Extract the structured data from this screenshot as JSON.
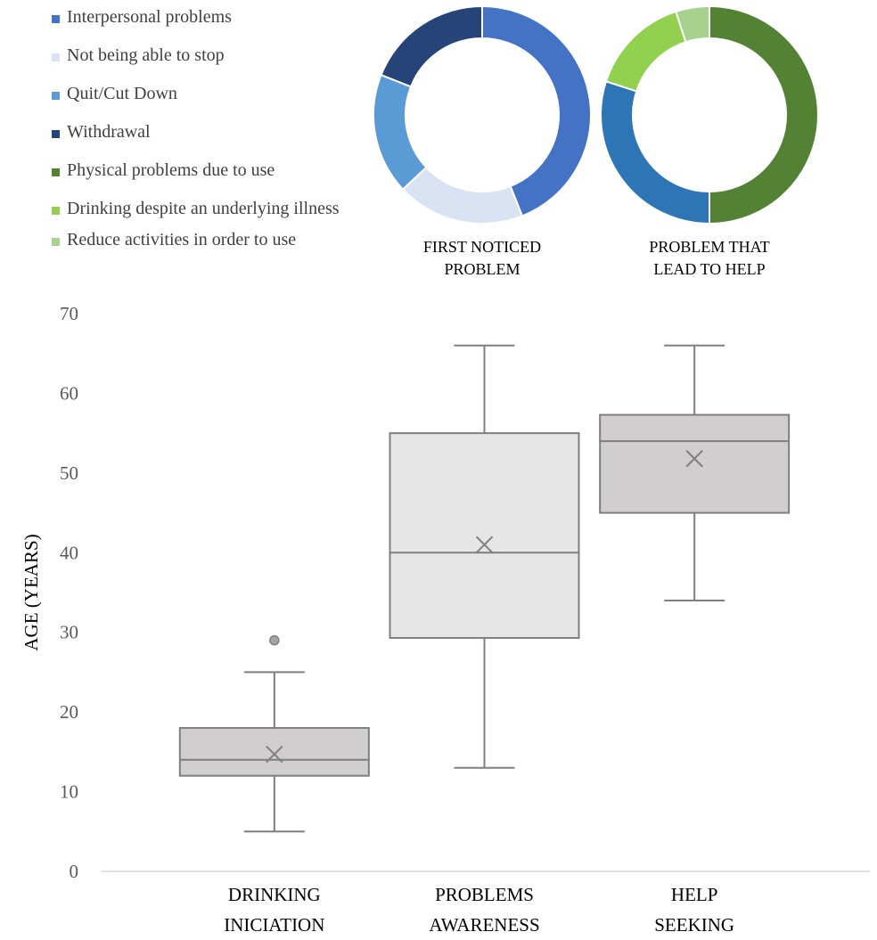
{
  "legend": {
    "items": [
      {
        "label": "Interpersonal problems",
        "color": "#4472C4"
      },
      {
        "label": "Not being able to stop",
        "color": "#DAE3F3"
      },
      {
        "label": "Quit/Cut Down",
        "color": "#5B9BD5"
      },
      {
        "label": "Withdrawal",
        "color": "#264478"
      },
      {
        "label": "Physical problems due to use",
        "color": "#548235"
      },
      {
        "label": "Drinking despite an underlying illness",
        "color": "#92D050"
      },
      {
        "label": "Reduce activities in order to use",
        "color": "#A9D18E"
      }
    ]
  },
  "chart_data": [
    {
      "type": "pie",
      "variant": "donut",
      "title": "FIRST NOTICED PROBLEM",
      "slices": [
        {
          "label": "Interpersonal problems",
          "value": 44,
          "color": "#4472C4"
        },
        {
          "label": "Not being able to stop",
          "value": 19,
          "color": "#DAE3F3"
        },
        {
          "label": "Quit/Cut Down",
          "value": 18,
          "color": "#5B9BD5"
        },
        {
          "label": "Withdrawal",
          "value": 19,
          "color": "#264478"
        }
      ]
    },
    {
      "type": "pie",
      "variant": "donut",
      "title": "PROBLEM THAT LEAD TO HELP",
      "slices": [
        {
          "label": "Physical problems due to use",
          "value": 50,
          "color": "#548235"
        },
        {
          "label": "Interpersonal problems",
          "value": 30,
          "color": "#2E75B6"
        },
        {
          "label": "Drinking despite an underlying illness",
          "value": 15,
          "color": "#92D050"
        },
        {
          "label": "Reduce activities in order to use",
          "value": 5,
          "color": "#A9D18E"
        }
      ]
    },
    {
      "type": "box",
      "ylabel": "AGE (YEARS)",
      "ylim": [
        0,
        70
      ],
      "yticks": [
        0,
        10,
        20,
        30,
        40,
        50,
        60,
        70
      ],
      "grid": false,
      "categories": [
        "DRINKING INICIATION",
        "PROBLEMS AWARENESS",
        "HELP SEEKING"
      ],
      "boxes": [
        {
          "name": "DRINKING INICIATION",
          "min": 5,
          "q1": 12,
          "median": 14,
          "q3": 18,
          "max": 25,
          "mean": 14.7,
          "outliers": [
            29
          ],
          "fill": "#D0CECE"
        },
        {
          "name": "PROBLEMS AWARENESS",
          "min": 13,
          "q1": 29.3,
          "median": 40,
          "q3": 55,
          "max": 66,
          "mean": 41,
          "outliers": [],
          "fill": "#E7E6E6"
        },
        {
          "name": "HELP SEEKING",
          "min": 34,
          "q1": 45,
          "median": 54,
          "q3": 57.3,
          "max": 66,
          "mean": 51.8,
          "outliers": [],
          "fill": "#D0CECE"
        }
      ]
    }
  ]
}
